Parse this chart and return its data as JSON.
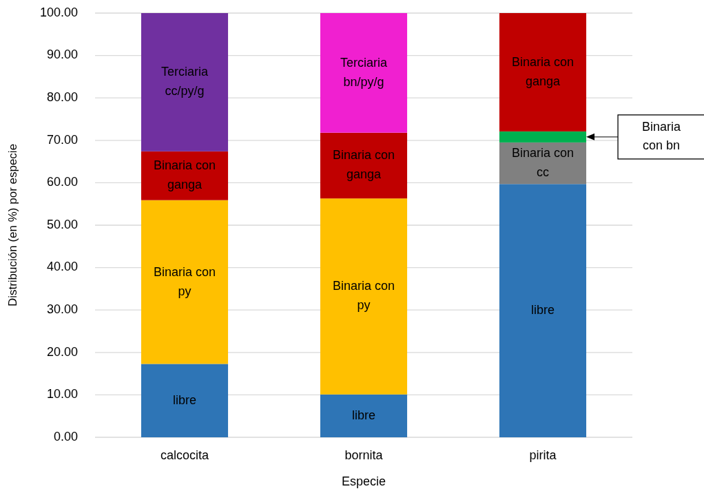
{
  "chart_data": {
    "type": "bar",
    "stacked": true,
    "xlabel": "Especie",
    "ylabel": "Distribución (en %) por especie",
    "categories": [
      "calcocita",
      "bornita",
      "pirita"
    ],
    "series": [
      {
        "name": "libre",
        "color": "#2e75b6",
        "values": [
          17.3,
          10.1,
          59.7
        ]
      },
      {
        "name": "Binaria con py",
        "color": "#ffc000",
        "values": [
          38.6,
          46.2,
          null
        ]
      },
      {
        "name": "Binaria con cc",
        "color": "#808080",
        "values": [
          null,
          null,
          9.8
        ]
      },
      {
        "color": "#00b050",
        "values": [
          null,
          null,
          2.6
        ]
      },
      {
        "name": "Binaria con ganga",
        "color": "#c00000",
        "values": [
          11.5,
          15.5,
          27.9
        ]
      },
      {
        "name": "Terciaria cc/py/g",
        "color": "#7030a0",
        "values": [
          32.6,
          null,
          null
        ]
      },
      {
        "name": "Terciaria bn/py/g",
        "color": "#f020d0",
        "values": [
          null,
          28.2,
          null
        ]
      }
    ],
    "annotations": [
      "Binaria con bn"
    ],
    "ylim": [
      0,
      100
    ],
    "yticks": [
      {
        "value": 0,
        "label": "0.00"
      },
      {
        "value": 10,
        "label": "10.00"
      },
      {
        "value": 20,
        "label": "20.00"
      },
      {
        "value": 30,
        "label": "30.00"
      },
      {
        "value": 40,
        "label": "40.00"
      },
      {
        "value": 50,
        "label": "50.00"
      },
      {
        "value": 60,
        "label": "60.00"
      },
      {
        "value": 70,
        "label": "70.00"
      },
      {
        "value": 80,
        "label": "80.00"
      },
      {
        "value": 90,
        "label": "90.00"
      },
      {
        "value": 100,
        "label": "100.00"
      }
    ],
    "grid": "y",
    "legend": false
  }
}
